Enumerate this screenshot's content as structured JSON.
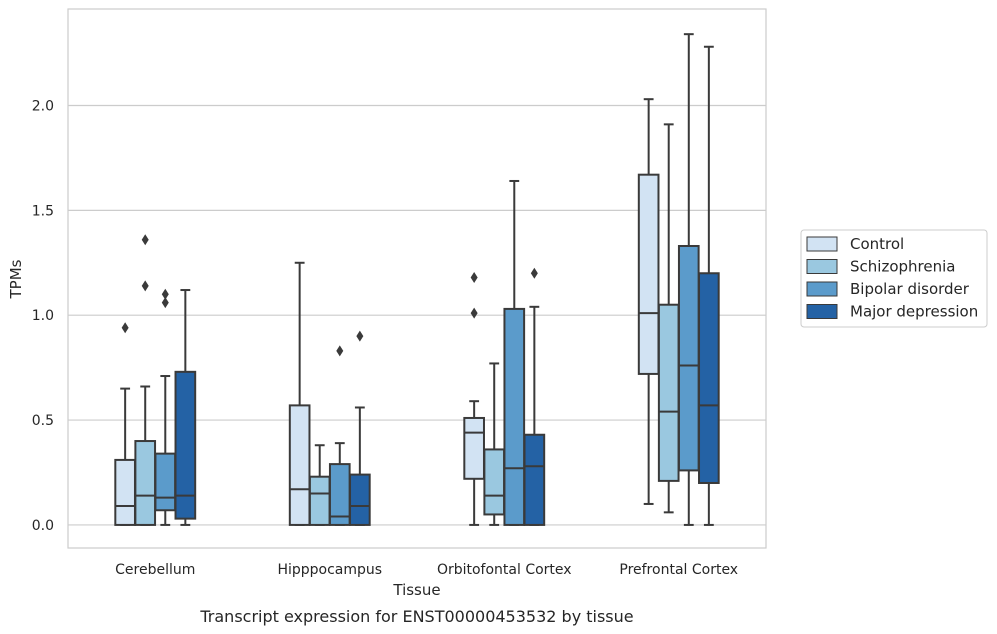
{
  "chart_data": {
    "type": "box",
    "title": "",
    "caption": "Transcript expression for ENST00000453532 by tissue",
    "xlabel": "Tissue",
    "ylabel": "TPMs",
    "ylim": [
      -0.11,
      2.46
    ],
    "yticks": [
      "0.0",
      "0.5",
      "1.0",
      "1.5",
      "2.0"
    ],
    "ytick_values": [
      0.0,
      0.5,
      1.0,
      1.5,
      2.0
    ],
    "grid": "horizontal",
    "legend_position": "right",
    "categories": [
      "Cerebellum",
      "Hipppocampus",
      "Orbitofontal Cortex",
      "Prefrontal Cortex"
    ],
    "series": [
      {
        "name": "Control",
        "color": "#d2e3f3",
        "boxes": [
          {
            "whislo": 0.0,
            "q1": 0.0,
            "med": 0.09,
            "q3": 0.31,
            "whishi": 0.65,
            "fliers": [
              0.94
            ]
          },
          {
            "whislo": 0.0,
            "q1": 0.0,
            "med": 0.17,
            "q3": 0.57,
            "whishi": 1.25,
            "fliers": []
          },
          {
            "whislo": 0.0,
            "q1": 0.22,
            "med": 0.44,
            "q3": 0.51,
            "whishi": 0.59,
            "fliers": [
              1.01,
              1.18
            ]
          },
          {
            "whislo": 0.1,
            "q1": 0.72,
            "med": 1.01,
            "q3": 1.67,
            "whishi": 2.03,
            "fliers": []
          }
        ]
      },
      {
        "name": "Schizophrenia",
        "color": "#9ac8e0",
        "boxes": [
          {
            "whislo": 0.0,
            "q1": 0.0,
            "med": 0.14,
            "q3": 0.4,
            "whishi": 0.66,
            "fliers": [
              1.14,
              1.36
            ]
          },
          {
            "whislo": 0.0,
            "q1": 0.0,
            "med": 0.15,
            "q3": 0.23,
            "whishi": 0.38,
            "fliers": []
          },
          {
            "whislo": 0.0,
            "q1": 0.05,
            "med": 0.14,
            "q3": 0.36,
            "whishi": 0.77,
            "fliers": []
          },
          {
            "whislo": 0.06,
            "q1": 0.21,
            "med": 0.54,
            "q3": 1.05,
            "whishi": 1.91,
            "fliers": []
          }
        ]
      },
      {
        "name": "Bipolar disorder",
        "color": "#5b9bcb",
        "boxes": [
          {
            "whislo": 0.0,
            "q1": 0.07,
            "med": 0.13,
            "q3": 0.34,
            "whishi": 0.71,
            "fliers": [
              1.06,
              1.1
            ]
          },
          {
            "whislo": 0.0,
            "q1": 0.0,
            "med": 0.04,
            "q3": 0.29,
            "whishi": 0.39,
            "fliers": [
              0.83
            ]
          },
          {
            "whislo": 0.0,
            "q1": 0.0,
            "med": 0.27,
            "q3": 1.03,
            "whishi": 1.64,
            "fliers": []
          },
          {
            "whislo": 0.0,
            "q1": 0.26,
            "med": 0.76,
            "q3": 1.33,
            "whishi": 2.34,
            "fliers": []
          }
        ]
      },
      {
        "name": "Major depression",
        "color": "#2462a5",
        "boxes": [
          {
            "whislo": 0.0,
            "q1": 0.03,
            "med": 0.14,
            "q3": 0.73,
            "whishi": 1.12,
            "fliers": []
          },
          {
            "whislo": 0.0,
            "q1": 0.0,
            "med": 0.09,
            "q3": 0.24,
            "whishi": 0.56,
            "fliers": [
              0.9
            ]
          },
          {
            "whislo": 0.0,
            "q1": 0.0,
            "med": 0.28,
            "q3": 0.43,
            "whishi": 1.04,
            "fliers": [
              1.2
            ]
          },
          {
            "whislo": 0.0,
            "q1": 0.2,
            "med": 0.57,
            "q3": 1.2,
            "whishi": 2.28,
            "fliers": []
          }
        ]
      }
    ]
  }
}
